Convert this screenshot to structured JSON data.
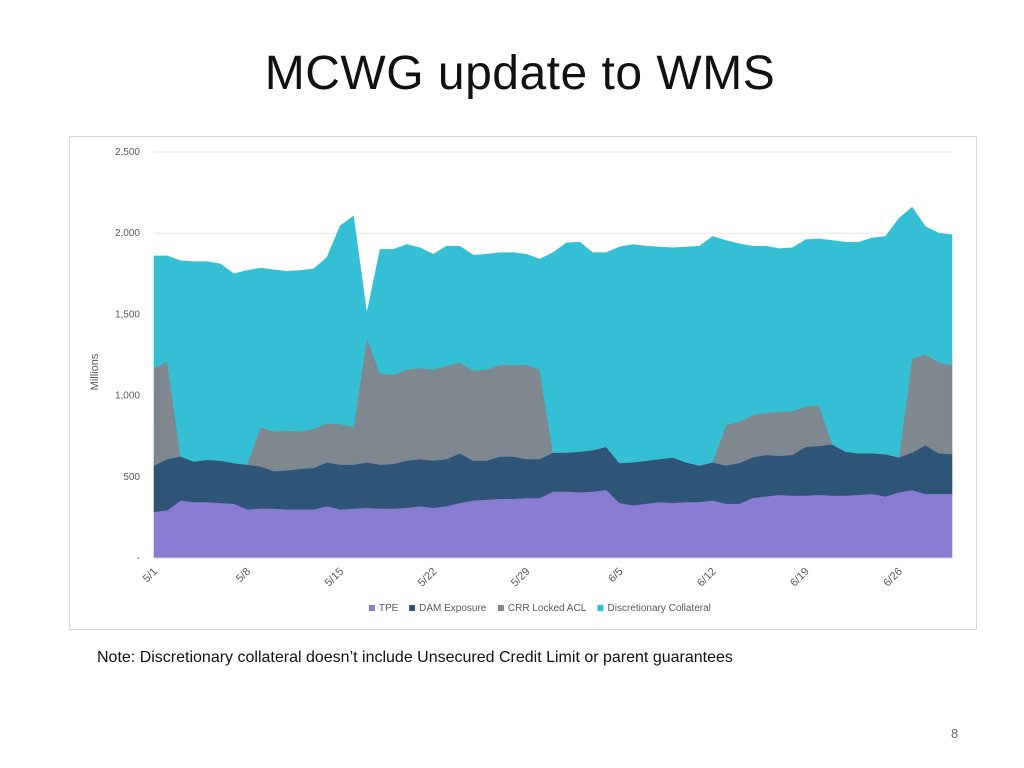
{
  "slide": {
    "title": "MCWG update to WMS",
    "note": "Note: Discretionary collateral doesn’t include Unsecured Credit Limit or parent guarantees",
    "page_number": "8"
  },
  "chart_data": {
    "type": "area",
    "stacked": true,
    "title": "",
    "xlabel": "",
    "ylabel": "Millions",
    "ylim": [
      0,
      2500
    ],
    "yticks": [
      0,
      500,
      1000,
      1500,
      2000,
      2500
    ],
    "ytick_labels": [
      "-",
      "500",
      "1,000",
      "1,500",
      "2,000",
      "2,500"
    ],
    "x_tick_labels": [
      "5/1",
      "5/8",
      "5/15",
      "5/22",
      "5/29",
      "6/5",
      "6/12",
      "6/19",
      "6/26"
    ],
    "grid": true,
    "legend_position": "bottom",
    "categories": [
      "5/1",
      "5/2",
      "5/3",
      "5/4",
      "5/5",
      "5/6",
      "5/7",
      "5/8",
      "5/9",
      "5/10",
      "5/11",
      "5/12",
      "5/13",
      "5/14",
      "5/15",
      "5/16",
      "5/17",
      "5/18",
      "5/19",
      "5/20",
      "5/21",
      "5/22",
      "5/23",
      "5/24",
      "5/25",
      "5/26",
      "5/27",
      "5/28",
      "5/29",
      "5/30",
      "5/31",
      "6/1",
      "6/2",
      "6/3",
      "6/4",
      "6/5",
      "6/6",
      "6/7",
      "6/8",
      "6/9",
      "6/10",
      "6/11",
      "6/12",
      "6/13",
      "6/14",
      "6/15",
      "6/16",
      "6/17",
      "6/18",
      "6/19",
      "6/20",
      "6/21",
      "6/22",
      "6/23",
      "6/24",
      "6/25",
      "6/26",
      "6/27",
      "6/28",
      "6/29",
      "6/30"
    ],
    "series": [
      {
        "name": "TPE",
        "color": "#8a7bd3",
        "values": [
          285,
          295,
          355,
          345,
          345,
          340,
          335,
          300,
          305,
          305,
          300,
          300,
          300,
          320,
          300,
          305,
          310,
          305,
          305,
          310,
          320,
          310,
          320,
          340,
          355,
          360,
          365,
          365,
          370,
          370,
          410,
          410,
          405,
          410,
          420,
          340,
          325,
          335,
          345,
          340,
          345,
          345,
          355,
          335,
          335,
          370,
          380,
          390,
          385,
          385,
          390,
          385,
          385,
          390,
          395,
          380,
          405,
          420,
          395,
          395,
          395
        ]
      },
      {
        "name": "DAM Exposure",
        "color": "#2e5577",
        "values": [
          285,
          315,
          270,
          250,
          260,
          260,
          250,
          275,
          260,
          230,
          240,
          250,
          255,
          270,
          275,
          270,
          280,
          270,
          275,
          290,
          290,
          290,
          290,
          305,
          245,
          240,
          260,
          260,
          240,
          240,
          240,
          240,
          250,
          255,
          265,
          245,
          265,
          265,
          265,
          280,
          245,
          225,
          235,
          235,
          250,
          250,
          255,
          240,
          250,
          300,
          300,
          315,
          270,
          255,
          250,
          260,
          215,
          230,
          300,
          250,
          245
        ]
      },
      {
        "name": "CRR Locked ACL",
        "color": "#7f878f",
        "values": [
          600,
          600,
          0,
          0,
          0,
          0,
          0,
          0,
          240,
          245,
          245,
          230,
          240,
          240,
          250,
          230,
          765,
          560,
          550,
          560,
          560,
          560,
          575,
          560,
          555,
          560,
          565,
          565,
          580,
          550,
          0,
          0,
          0,
          0,
          0,
          0,
          0,
          0,
          0,
          0,
          0,
          0,
          0,
          250,
          255,
          260,
          260,
          270,
          270,
          250,
          250,
          0,
          0,
          0,
          0,
          0,
          0,
          580,
          560,
          560,
          550
        ]
      },
      {
        "name": "Discretionary Collateral",
        "color": "#35bfd4",
        "values": [
          690,
          650,
          1205,
          1230,
          1220,
          1210,
          1165,
          1195,
          980,
          995,
          980,
          990,
          985,
          1020,
          1220,
          1300,
          150,
          765,
          770,
          770,
          740,
          710,
          735,
          715,
          710,
          710,
          690,
          690,
          680,
          680,
          1230,
          1290,
          1290,
          1215,
          1195,
          1330,
          1340,
          1320,
          1305,
          1290,
          1325,
          1350,
          1390,
          1135,
          1095,
          1040,
          1025,
          1005,
          1005,
          1025,
          1025,
          1255,
          1290,
          1300,
          1325,
          1340,
          1470,
          930,
          785,
          795,
          800
        ]
      }
    ]
  }
}
